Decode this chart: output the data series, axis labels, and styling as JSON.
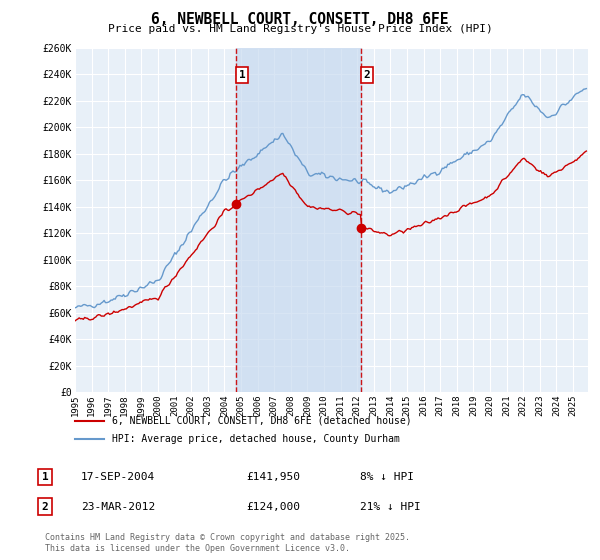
{
  "title": "6, NEWBELL COURT, CONSETT, DH8 6FE",
  "subtitle": "Price paid vs. HM Land Registry's House Price Index (HPI)",
  "legend_line1": "6, NEWBELL COURT, CONSETT, DH8 6FE (detached house)",
  "legend_line2": "HPI: Average price, detached house, County Durham",
  "transaction1_date": "17-SEP-2004",
  "transaction1_price": "£141,950",
  "transaction1_hpi": "8% ↓ HPI",
  "transaction2_date": "23-MAR-2012",
  "transaction2_price": "£124,000",
  "transaction2_hpi": "21% ↓ HPI",
  "footer": "Contains HM Land Registry data © Crown copyright and database right 2025.\nThis data is licensed under the Open Government Licence v3.0.",
  "xmin": 1995.0,
  "xmax": 2025.9,
  "ymin": 0,
  "ymax": 260000,
  "yticks": [
    0,
    20000,
    40000,
    60000,
    80000,
    100000,
    120000,
    140000,
    160000,
    180000,
    200000,
    220000,
    240000,
    260000
  ],
  "ytick_labels": [
    "£0",
    "£20K",
    "£40K",
    "£60K",
    "£80K",
    "£100K",
    "£120K",
    "£140K",
    "£160K",
    "£180K",
    "£200K",
    "£220K",
    "£240K",
    "£260K"
  ],
  "xticks": [
    1995,
    1996,
    1997,
    1998,
    1999,
    2000,
    2001,
    2002,
    2003,
    2004,
    2005,
    2006,
    2007,
    2008,
    2009,
    2010,
    2011,
    2012,
    2013,
    2014,
    2015,
    2016,
    2017,
    2018,
    2019,
    2020,
    2021,
    2022,
    2023,
    2024,
    2025
  ],
  "hpi_color": "#6699cc",
  "hpi_fill_color": "#ddeeff",
  "price_color": "#cc0000",
  "vline_color": "#cc0000",
  "plot_bg_color": "#e8f0f8",
  "grid_color": "#ffffff",
  "transaction1_x": 2004.72,
  "transaction2_x": 2012.23,
  "transaction1_y": 141950,
  "transaction2_y": 124000,
  "shade_color": "#c8daf0"
}
